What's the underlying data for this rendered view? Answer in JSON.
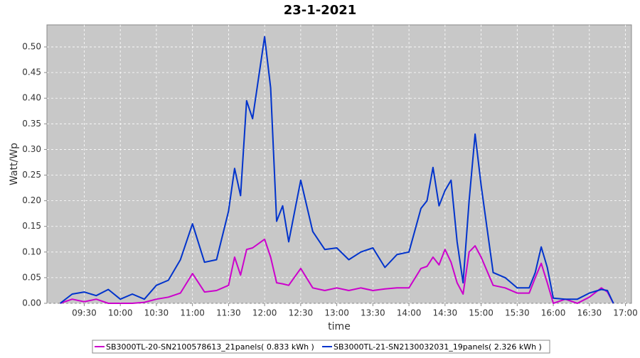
{
  "chart_data": {
    "type": "line",
    "title": "23-1-2021",
    "xlabel": "time",
    "ylabel": "Watt/Wp",
    "x": [
      "09:10",
      "09:20",
      "09:30",
      "09:40",
      "09:50",
      "10:00",
      "10:10",
      "10:20",
      "10:30",
      "10:40",
      "10:50",
      "11:00",
      "11:10",
      "11:20",
      "11:30",
      "11:35",
      "11:40",
      "11:45",
      "11:50",
      "12:00",
      "12:05",
      "12:10",
      "12:15",
      "12:20",
      "12:30",
      "12:40",
      "12:50",
      "13:00",
      "13:10",
      "13:20",
      "13:30",
      "13:40",
      "13:50",
      "14:00",
      "14:10",
      "14:15",
      "14:20",
      "14:25",
      "14:30",
      "14:35",
      "14:40",
      "14:45",
      "14:50",
      "14:55",
      "15:00",
      "15:10",
      "15:20",
      "15:30",
      "15:40",
      "15:45",
      "15:50",
      "15:55",
      "16:00",
      "16:10",
      "16:20",
      "16:30",
      "16:40",
      "16:45",
      "16:50"
    ],
    "series": [
      {
        "name": "SB3000TL-20-SN2100578613_21panels( 0.833 kWh )",
        "color": "#cc00cc",
        "values": [
          0,
          0.008,
          0.003,
          0.008,
          0,
          0,
          0,
          0.002,
          0.008,
          0.012,
          0.02,
          0.058,
          0.022,
          0.025,
          0.035,
          0.09,
          0.055,
          0.105,
          0.108,
          0.125,
          0.09,
          0.04,
          0.038,
          0.035,
          0.068,
          0.03,
          0.025,
          0.03,
          0.025,
          0.03,
          0.025,
          0.028,
          0.03,
          0.03,
          0.068,
          0.072,
          0.09,
          0.075,
          0.105,
          0.08,
          0.04,
          0.018,
          0.1,
          0.112,
          0.09,
          0.035,
          0.03,
          0.02,
          0.02,
          0.05,
          0.078,
          0.04,
          0,
          0.008,
          0,
          0.012,
          0.03,
          0.022,
          0
        ]
      },
      {
        "name": "SB3000TL-21-SN2130032031_19panels( 2.326 kWh )",
        "color": "#0033cc",
        "values": [
          0,
          0.018,
          0.022,
          0.015,
          0.027,
          0.008,
          0.018,
          0.008,
          0.035,
          0.045,
          0.085,
          0.155,
          0.08,
          0.085,
          0.18,
          0.263,
          0.21,
          0.395,
          0.36,
          0.52,
          0.42,
          0.16,
          0.19,
          0.12,
          0.24,
          0.14,
          0.105,
          0.108,
          0.085,
          0.1,
          0.108,
          0.07,
          0.095,
          0.1,
          0.185,
          0.2,
          0.265,
          0.19,
          0.22,
          0.24,
          0.12,
          0.04,
          0.2,
          0.33,
          0.23,
          0.06,
          0.05,
          0.03,
          0.03,
          0.06,
          0.11,
          0.07,
          0.01,
          0.008,
          0.008,
          0.02,
          0.027,
          0.025,
          0
        ]
      }
    ],
    "xlim": [
      "08:59",
      "17:05"
    ],
    "xticks": [
      "09:30",
      "10:00",
      "10:30",
      "11:00",
      "11:30",
      "12:00",
      "12:30",
      "13:00",
      "13:30",
      "14:00",
      "14:30",
      "15:00",
      "15:30",
      "16:00",
      "16:30",
      "17:00"
    ],
    "ylim": [
      0,
      0.543
    ],
    "yticks": [
      {
        "value": 0,
        "label": "0.00"
      },
      0.05,
      {
        "value": 0.1,
        "label": "0.10"
      },
      0.15,
      {
        "value": 0.2,
        "label": "0.20"
      },
      0.25,
      {
        "value": 0.3,
        "label": "0.30"
      },
      0.35,
      {
        "value": 0.4,
        "label": "0.40"
      },
      0.45,
      {
        "value": 0.5,
        "label": "0.50"
      }
    ],
    "grid": true
  }
}
